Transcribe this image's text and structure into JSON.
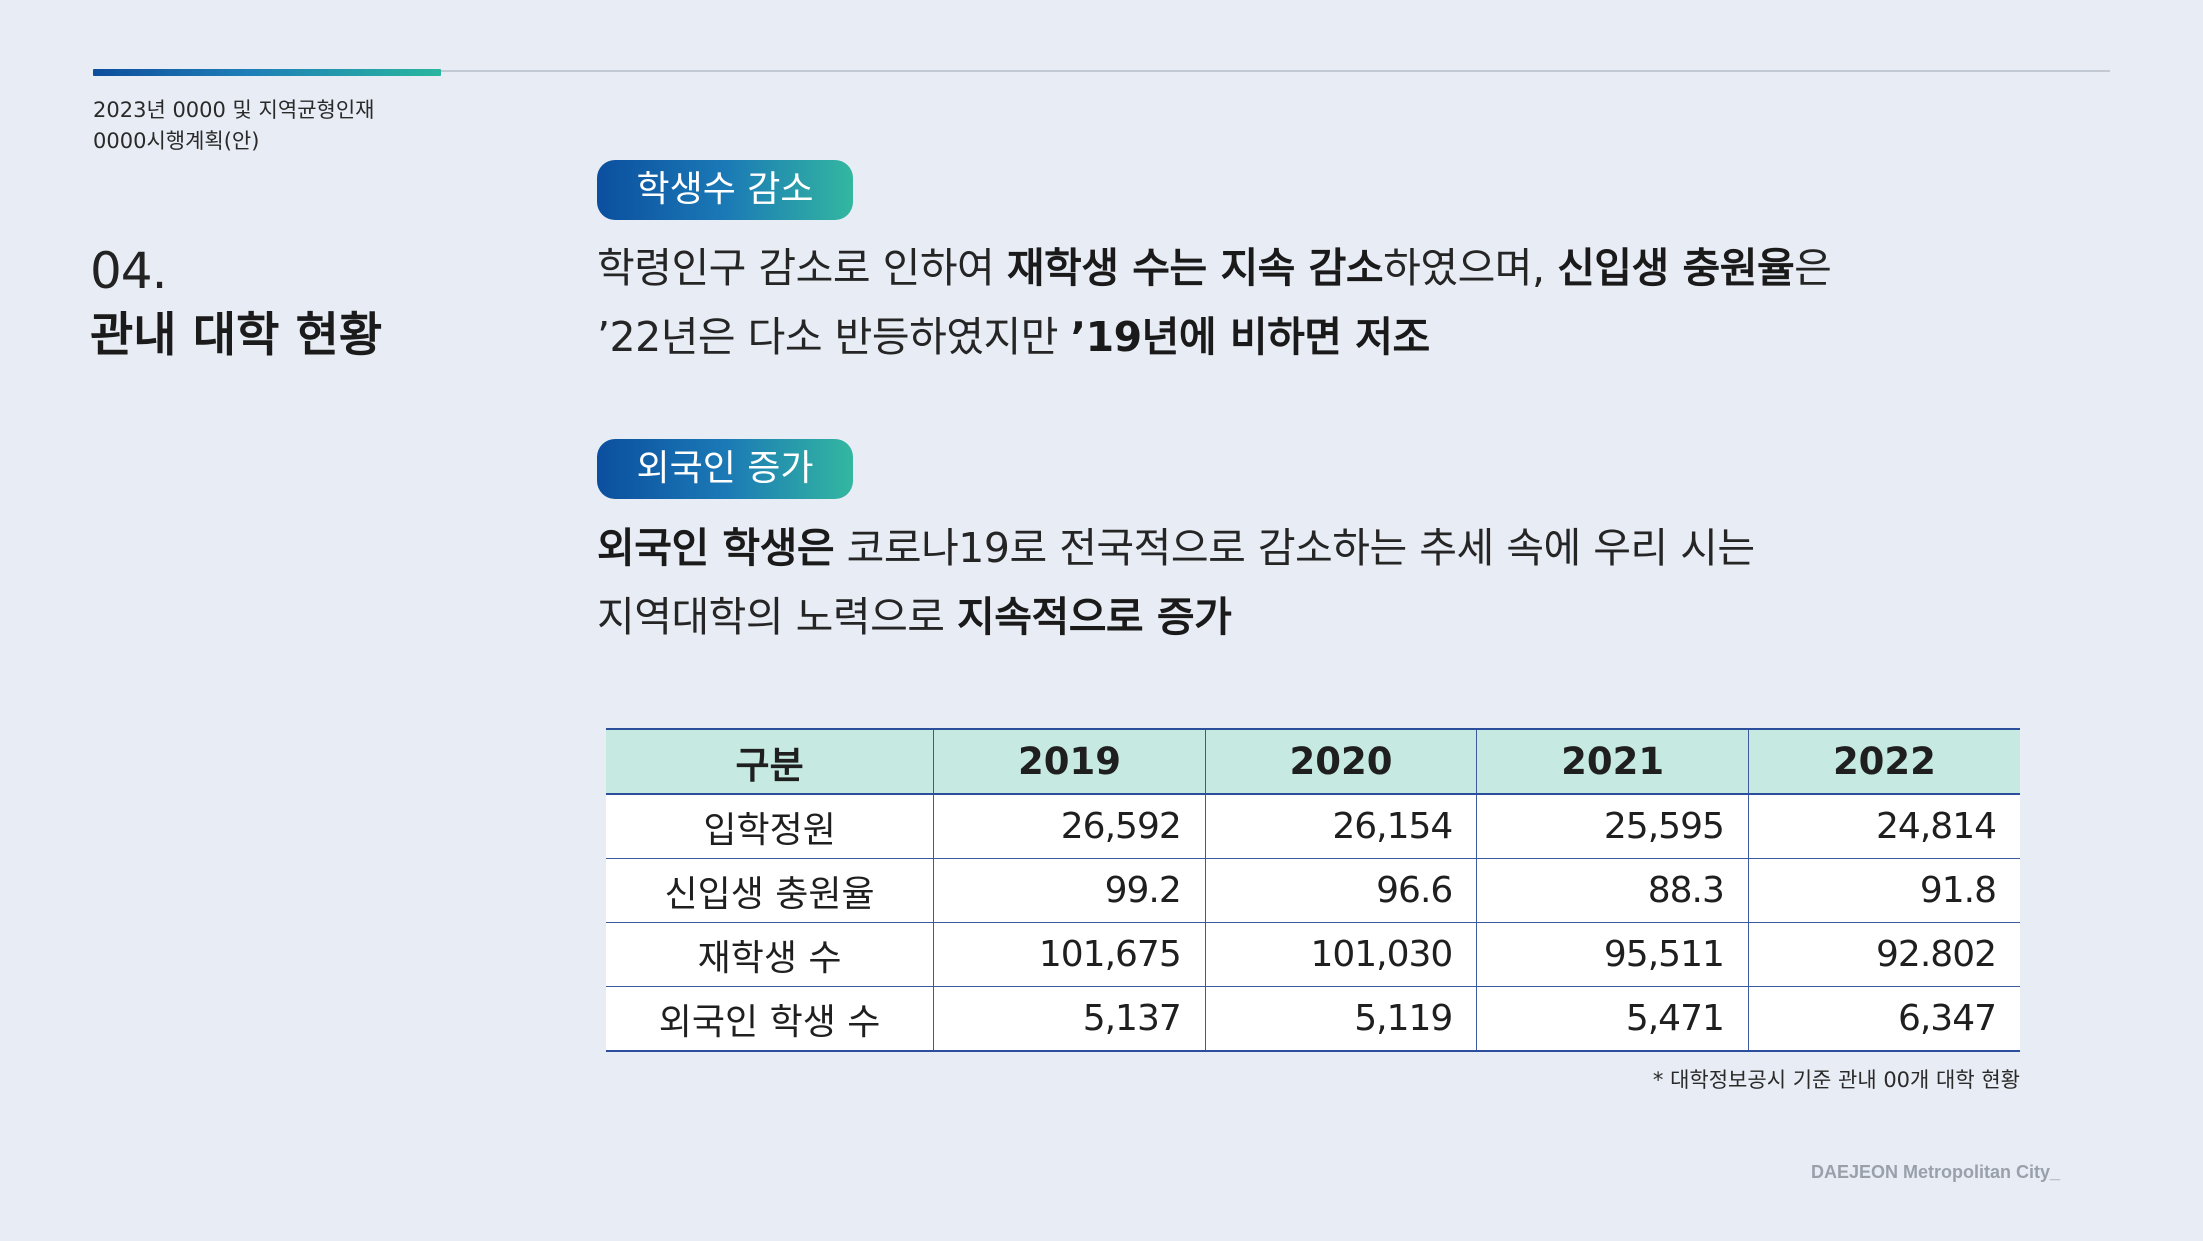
{
  "header": {
    "line1": "2023년 0000 및 지역균형인재",
    "line2": "0000시행계획(안)"
  },
  "section": {
    "number": "04.",
    "title": "관내 대학 현황"
  },
  "block1": {
    "tag": "학생수 감소",
    "line1": {
      "p1": "학령인구 감소로 인하여 ",
      "b1": "재학생 수는 지속 감소",
      "p2": "하였으며, ",
      "b2": "신입생 충원율",
      "p3": "은"
    },
    "line2": {
      "p1": "’22년은 다소 반등하였지만 ",
      "b1": "’19년에 비하면 저조"
    }
  },
  "block2": {
    "tag": "외국인 증가",
    "line1": {
      "b1": "외국인 학생은",
      "p1": " 코로나19로 전국적으로 감소하는 추세 속에 우리 시는"
    },
    "line2": {
      "p1": "지역대학의 노력으로 ",
      "b1": "지속적으로 증가"
    }
  },
  "table": {
    "headers": [
      "구분",
      "2019",
      "2020",
      "2021",
      "2022"
    ],
    "rows": [
      [
        "입학정원",
        "26,592",
        "26,154",
        "25,595",
        "24,814"
      ],
      [
        "신입생 충원율",
        "99.2",
        "96.6",
        "88.3",
        "91.8"
      ],
      [
        "재학생 수",
        "101,675",
        "101,030",
        "95,511",
        "92.802"
      ],
      [
        "외국인 학생 수",
        "5,137",
        "5,119",
        "5,471",
        "6,347"
      ]
    ]
  },
  "footnote": "* 대학정보공시 기준 관내 00개 대학 현황",
  "footer": {
    "brand": "DAEJEON Metropolitan City_"
  },
  "colors": {
    "background": "#e8ecf4",
    "accent_start": "#0d4d9c",
    "accent_end": "#29b69f",
    "table_header": "#c6e9e2",
    "table_border": "#2b4f9c"
  }
}
